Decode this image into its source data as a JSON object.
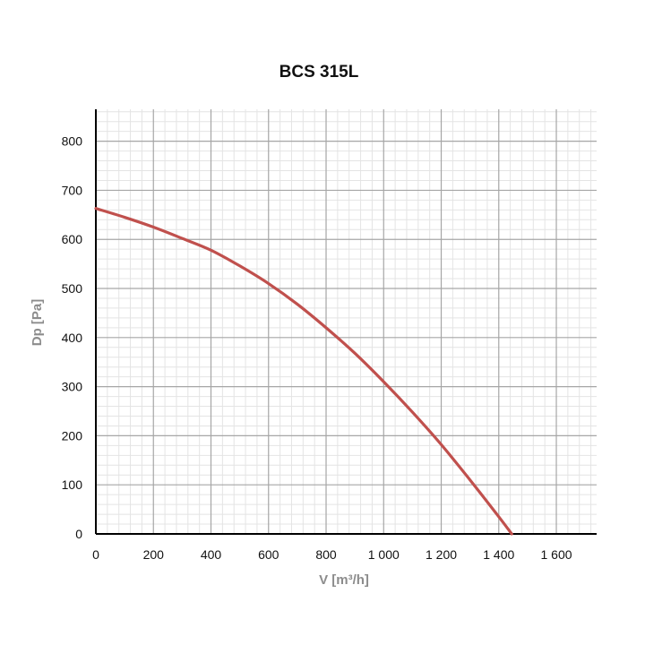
{
  "chart_data": {
    "type": "line",
    "title": "BCS 315L",
    "xlabel": "V [m³/h]",
    "ylabel": "Dp [Pa]",
    "xlim": [
      0,
      1740
    ],
    "ylim": [
      0,
      865
    ],
    "x_ticks": [
      0,
      200,
      400,
      600,
      800,
      1000,
      1200,
      1400,
      1600
    ],
    "x_tick_labels": [
      "0",
      "200",
      "400",
      "600",
      "800",
      "1 000",
      "1 200",
      "1 400",
      "1 600"
    ],
    "y_ticks": [
      0,
      100,
      200,
      300,
      400,
      500,
      600,
      700,
      800
    ],
    "y_tick_labels": [
      "0",
      "100",
      "200",
      "300",
      "400",
      "500",
      "600",
      "700",
      "800"
    ],
    "minor_grid_step_x": 40,
    "minor_grid_step_y": 20,
    "grid": true,
    "legend": "none",
    "series": [
      {
        "color": "#c0504d",
        "x": [
          0,
          100,
          200,
          300,
          400,
          500,
          600,
          700,
          800,
          900,
          1000,
          1100,
          1200,
          1300,
          1400,
          1445
        ],
        "y": [
          663,
          645,
          625,
          602,
          578,
          546,
          510,
          468,
          420,
          368,
          310,
          248,
          182,
          110,
          35,
          0
        ]
      }
    ]
  }
}
